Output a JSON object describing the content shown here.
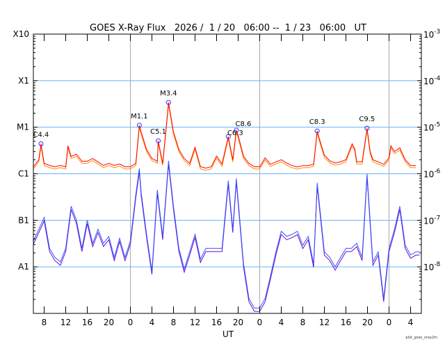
{
  "chart_data": {
    "type": "line",
    "title": "GOES X-Ray Flux   2026 /  1 / 20   06:00 --  1 / 23   06:00   UT",
    "xlabel": "UT",
    "footer": "plot_goes_xray2m",
    "time_range": [
      "01/20 06:00",
      "01/23 06:00"
    ],
    "x_tick_labels": [
      "8",
      "12",
      "16",
      "20",
      "0",
      "4",
      "8",
      "12",
      "16",
      "20",
      "0",
      "4",
      "8",
      "12",
      "16",
      "20",
      "0",
      "4"
    ],
    "y_scale": "log",
    "ylim": [
      1e-09,
      0.001
    ],
    "left_axis_labels": [
      {
        "flux": 0.001,
        "label": "X10"
      },
      {
        "flux": 0.0001,
        "label": "X1"
      },
      {
        "flux": 1e-05,
        "label": "M1"
      },
      {
        "flux": 1e-06,
        "label": "C1"
      },
      {
        "flux": 1e-07,
        "label": "B1"
      },
      {
        "flux": 1e-08,
        "label": "A1"
      }
    ],
    "right_axis_labels": [
      {
        "flux": 0.001,
        "base": "10",
        "exp": "-3"
      },
      {
        "flux": 0.0001,
        "base": "10",
        "exp": "-4"
      },
      {
        "flux": 1e-05,
        "base": "10",
        "exp": "-5"
      },
      {
        "flux": 1e-06,
        "base": "10",
        "exp": "-6"
      },
      {
        "flux": 1e-07,
        "base": "10",
        "exp": "-7"
      },
      {
        "flux": 1e-08,
        "base": "10",
        "exp": "-8"
      }
    ],
    "grid": {
      "horizontal_at_flux": [
        0.0001,
        1e-05,
        1e-06,
        1e-07,
        1e-08
      ],
      "vertical_at": [
        "01/21 00:00",
        "01/22 00:00",
        "01/23 00:00"
      ]
    },
    "colors": {
      "long": "#ff0000",
      "long_secondary": "#ff8c00",
      "short": "#3355ff",
      "short_secondary": "#6a0dce",
      "grid_h": "#66b3ff",
      "grid_v": "#aaaaaa",
      "flare_marker": "#3333ff"
    },
    "series": [
      {
        "key": "long",
        "points": [
          [
            "01/20 06:00",
            1.41e-06
          ],
          [
            "01/20 07:00",
            1.99e-06
          ],
          [
            "01/20 07:25",
            4.4e-06
          ],
          [
            "01/20 08:00",
            1.67e-06
          ],
          [
            "01/20 09:00",
            1.51e-06
          ],
          [
            "01/20 10:00",
            1.41e-06
          ],
          [
            "01/20 11:00",
            1.51e-06
          ],
          [
            "01/20 12:00",
            1.41e-06
          ],
          [
            "01/20 12:25",
            4e-06
          ],
          [
            "01/20 13:00",
            2.36e-06
          ],
          [
            "01/20 14:00",
            2.62e-06
          ],
          [
            "01/20 15:00",
            1.86e-06
          ],
          [
            "01/20 16:00",
            1.86e-06
          ],
          [
            "01/20 17:00",
            2.13e-06
          ],
          [
            "01/20 18:00",
            1.79e-06
          ],
          [
            "01/20 19:00",
            1.51e-06
          ],
          [
            "01/20 20:00",
            1.67e-06
          ],
          [
            "01/20 21:00",
            1.51e-06
          ],
          [
            "01/20 22:00",
            1.62e-06
          ],
          [
            "01/20 23:00",
            1.41e-06
          ],
          [
            "01/21 00:00",
            1.41e-06
          ],
          [
            "01/21 01:00",
            1.67e-06
          ],
          [
            "01/21 01:40",
            1.1e-05
          ],
          [
            "01/21 02:00",
            7.9e-06
          ],
          [
            "01/21 03:00",
            3.3e-06
          ],
          [
            "01/21 04:00",
            2.13e-06
          ],
          [
            "01/21 05:00",
            1.86e-06
          ],
          [
            "01/21 05:10",
            5.1e-06
          ],
          [
            "01/21 06:00",
            1.67e-06
          ],
          [
            "01/21 07:05",
            3.4e-05
          ],
          [
            "01/21 08:00",
            7.9e-06
          ],
          [
            "01/21 09:00",
            3.3e-06
          ],
          [
            "01/21 10:00",
            2.13e-06
          ],
          [
            "01/21 11:00",
            1.67e-06
          ],
          [
            "01/21 12:00",
            3.7e-06
          ],
          [
            "01/21 13:00",
            1.41e-06
          ],
          [
            "01/21 14:00",
            1.32e-06
          ],
          [
            "01/21 15:00",
            1.41e-06
          ],
          [
            "01/21 16:00",
            2.4e-06
          ],
          [
            "01/21 17:00",
            1.62e-06
          ],
          [
            "01/21 18:10",
            6.3e-06
          ],
          [
            "01/21 19:00",
            1.99e-06
          ],
          [
            "01/21 19:40",
            8.6e-06
          ],
          [
            "01/21 20:00",
            6.6e-06
          ],
          [
            "01/21 21:00",
            2.36e-06
          ],
          [
            "01/21 22:00",
            1.67e-06
          ],
          [
            "01/21 23:00",
            1.41e-06
          ],
          [
            "01/22 00:00",
            1.41e-06
          ],
          [
            "01/22 01:00",
            2.2e-06
          ],
          [
            "01/22 02:00",
            1.6e-06
          ],
          [
            "01/22 03:00",
            1.8e-06
          ],
          [
            "01/22 04:00",
            2e-06
          ],
          [
            "01/22 05:00",
            1.7e-06
          ],
          [
            "01/22 06:00",
            1.5e-06
          ],
          [
            "01/22 07:00",
            1.4e-06
          ],
          [
            "01/22 08:00",
            1.5e-06
          ],
          [
            "01/22 09:00",
            1.5e-06
          ],
          [
            "01/22 10:00",
            1.6e-06
          ],
          [
            "01/22 10:40",
            8.3e-06
          ],
          [
            "01/22 11:00",
            6e-06
          ],
          [
            "01/22 12:00",
            2.5e-06
          ],
          [
            "01/22 13:00",
            1.9e-06
          ],
          [
            "01/22 14:00",
            1.7e-06
          ],
          [
            "01/22 15:00",
            1.8e-06
          ],
          [
            "01/22 16:00",
            2e-06
          ],
          [
            "01/22 17:10",
            4.4e-06
          ],
          [
            "01/22 17:40",
            3.4e-06
          ],
          [
            "01/22 18:00",
            1.8e-06
          ],
          [
            "01/22 19:00",
            1.8e-06
          ],
          [
            "01/22 19:55",
            9.5e-06
          ],
          [
            "01/22 20:30",
            3e-06
          ],
          [
            "01/22 21:00",
            2e-06
          ],
          [
            "01/22 22:00",
            1.8e-06
          ],
          [
            "01/22 23:00",
            1.6e-06
          ],
          [
            "01/23 00:00",
            2.2e-06
          ],
          [
            "01/23 00:20",
            4e-06
          ],
          [
            "01/23 01:00",
            3e-06
          ],
          [
            "01/23 02:00",
            3.6e-06
          ],
          [
            "01/23 03:00",
            2e-06
          ],
          [
            "01/23 04:00",
            1.5e-06
          ],
          [
            "01/23 05:00",
            1.5e-06
          ]
        ]
      },
      {
        "key": "short",
        "points": [
          [
            "01/20 06:00",
            3.6e-08
          ],
          [
            "01/20 07:00",
            6.4e-08
          ],
          [
            "01/20 08:00",
            1.15e-07
          ],
          [
            "01/20 09:00",
            2.5e-08
          ],
          [
            "01/20 10:00",
            1.6e-08
          ],
          [
            "01/20 11:00",
            1.27e-08
          ],
          [
            "01/20 12:00",
            2.5e-08
          ],
          [
            "01/20 13:00",
            2e-07
          ],
          [
            "01/20 14:00",
            1e-07
          ],
          [
            "01/20 15:00",
            2.5e-08
          ],
          [
            "01/20 16:00",
            1e-07
          ],
          [
            "01/20 17:00",
            3.2e-08
          ],
          [
            "01/20 18:00",
            6.4e-08
          ],
          [
            "01/20 19:00",
            3.2e-08
          ],
          [
            "01/20 20:00",
            4.5e-08
          ],
          [
            "01/20 21:00",
            1.6e-08
          ],
          [
            "01/20 22:00",
            4.1e-08
          ],
          [
            "01/20 23:00",
            1.6e-08
          ],
          [
            "01/21 00:00",
            3.6e-08
          ],
          [
            "01/21 01:00",
            3.6e-07
          ],
          [
            "01/21 01:40",
            1.3e-06
          ],
          [
            "01/21 02:00",
            4e-07
          ],
          [
            "01/21 03:00",
            5e-08
          ],
          [
            "01/21 04:00",
            8.1e-09
          ],
          [
            "01/21 05:00",
            4.5e-07
          ],
          [
            "01/21 06:00",
            4.5e-08
          ],
          [
            "01/21 07:05",
            1.9e-06
          ],
          [
            "01/21 08:00",
            2e-07
          ],
          [
            "01/21 09:00",
            2.5e-08
          ],
          [
            "01/21 10:00",
            9e-09
          ],
          [
            "01/21 11:00",
            2.1e-08
          ],
          [
            "01/21 12:00",
            5e-08
          ],
          [
            "01/21 13:00",
            1.46e-08
          ],
          [
            "01/21 14:00",
            2.5e-08
          ],
          [
            "01/21 15:00",
            2.5e-08
          ],
          [
            "01/21 16:00",
            2.5e-08
          ],
          [
            "01/21 17:00",
            2.5e-08
          ],
          [
            "01/21 18:10",
            7.1e-07
          ],
          [
            "01/21 19:00",
            6.4e-08
          ],
          [
            "01/21 19:40",
            7.9e-07
          ],
          [
            "01/21 21:00",
            1.15e-08
          ],
          [
            "01/21 22:00",
            2.1e-09
          ],
          [
            "01/21 23:00",
            1.3e-09
          ],
          [
            "01/22 00:00",
            1.3e-09
          ],
          [
            "01/22 01:00",
            2.1e-09
          ],
          [
            "01/22 02:00",
            6.4e-09
          ],
          [
            "01/22 03:00",
            2.1e-08
          ],
          [
            "01/22 04:00",
            5.8e-08
          ],
          [
            "01/22 05:00",
            4.5e-08
          ],
          [
            "01/22 06:00",
            5e-08
          ],
          [
            "01/22 07:00",
            5.8e-08
          ],
          [
            "01/22 08:00",
            2.9e-08
          ],
          [
            "01/22 09:00",
            4.5e-08
          ],
          [
            "01/22 10:00",
            1.15e-08
          ],
          [
            "01/22 10:40",
            6.4e-07
          ],
          [
            "01/22 12:00",
            2.1e-08
          ],
          [
            "01/22 13:00",
            1.6e-08
          ],
          [
            "01/22 14:00",
            1e-08
          ],
          [
            "01/22 15:00",
            1.6e-08
          ],
          [
            "01/22 16:00",
            2.5e-08
          ],
          [
            "01/22 17:00",
            2.5e-08
          ],
          [
            "01/22 18:00",
            3.2e-08
          ],
          [
            "01/22 19:00",
            1.6e-08
          ],
          [
            "01/22 19:55",
            1e-06
          ],
          [
            "01/22 21:00",
            1.27e-08
          ],
          [
            "01/22 22:00",
            2.1e-08
          ],
          [
            "01/22 23:00",
            2.1e-09
          ],
          [
            "01/23 00:00",
            2.5e-08
          ],
          [
            "01/23 01:00",
            6.4e-08
          ],
          [
            "01/23 02:00",
            2e-07
          ],
          [
            "01/23 03:00",
            2.9e-08
          ],
          [
            "01/23 04:00",
            1.8e-08
          ],
          [
            "01/23 05:00",
            2.1e-08
          ],
          [
            "01/23 05:40",
            2.1e-08
          ]
        ]
      }
    ],
    "flares": [
      {
        "label": "C4.4",
        "time": "01/20 07:25",
        "flux": 4.4e-06
      },
      {
        "label": "M1.1",
        "time": "01/21 01:40",
        "flux": 1.1e-05
      },
      {
        "label": "C5.1",
        "time": "01/21 05:10",
        "flux": 5.1e-06
      },
      {
        "label": "M3.4",
        "time": "01/21 07:05",
        "flux": 3.4e-05
      },
      {
        "label": "C6.3",
        "time": "01/21 18:10",
        "flux": 6.3e-06
      },
      {
        "label": "C8.6",
        "time": "01/21 19:40",
        "flux": 8.6e-06
      },
      {
        "label": "C8.3",
        "time": "01/22 10:40",
        "flux": 8.3e-06
      },
      {
        "label": "C9.5",
        "time": "01/22 19:55",
        "flux": 9.5e-06
      }
    ]
  }
}
